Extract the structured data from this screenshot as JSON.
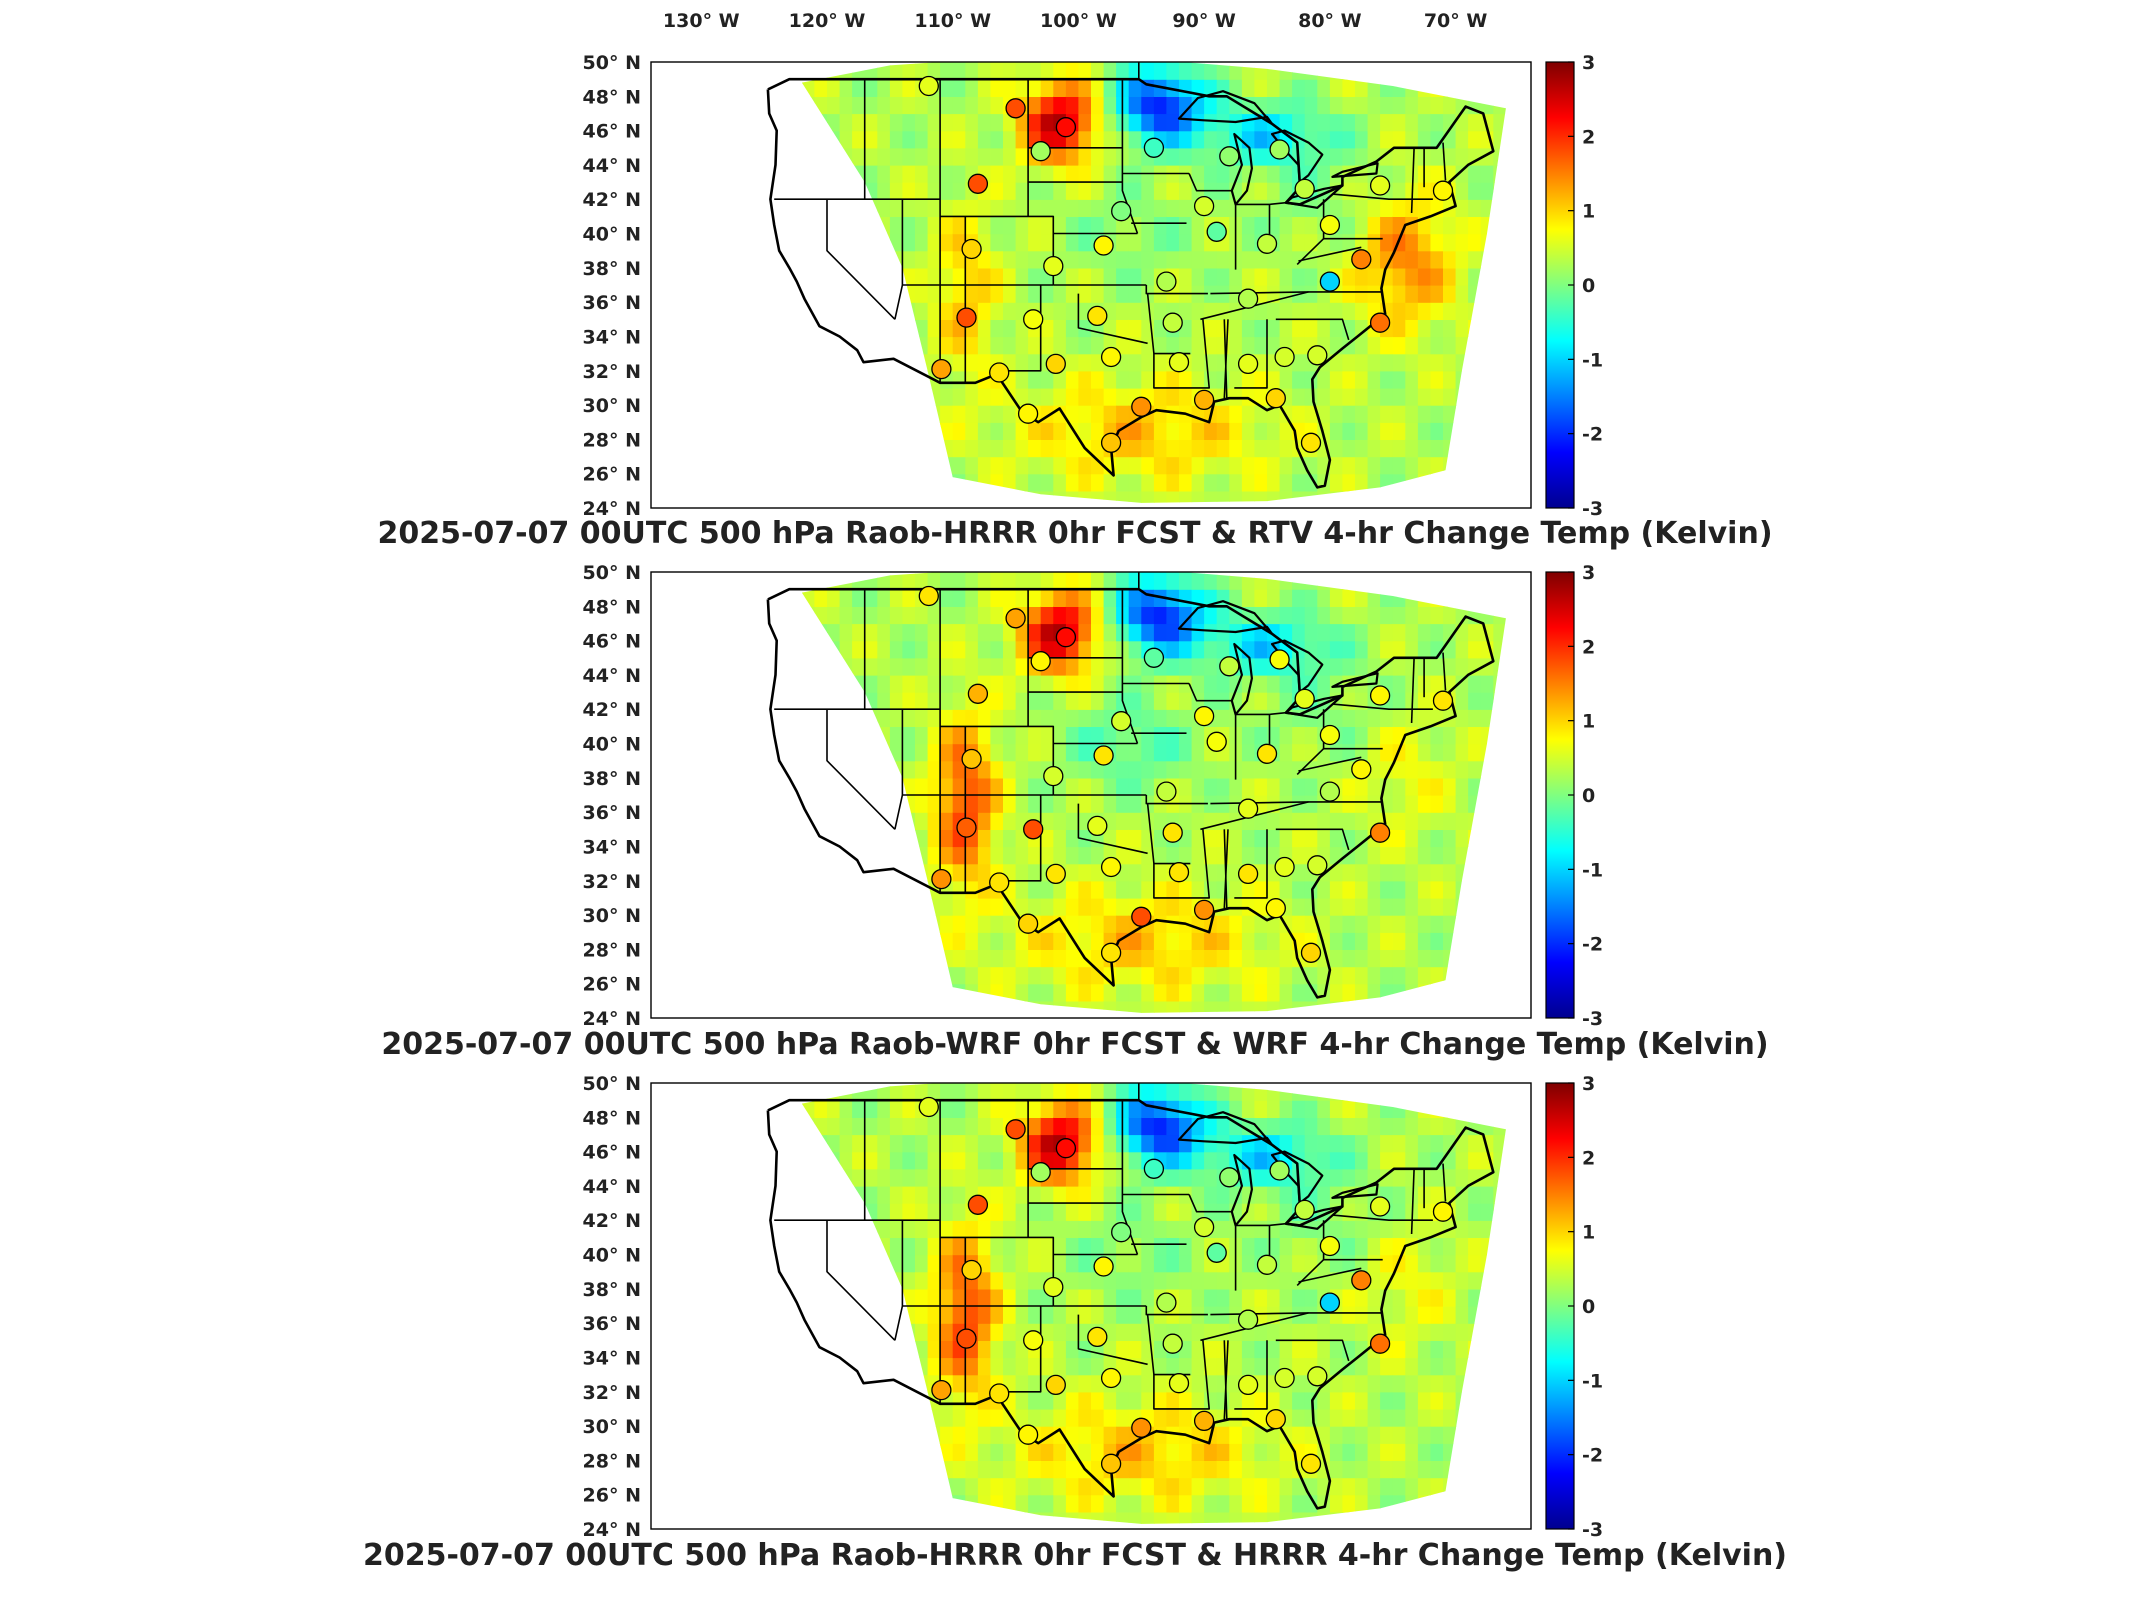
{
  "lon_labels": [
    "130° W",
    "120° W",
    "110° W",
    "100° W",
    "90° W",
    "80° W",
    "70° W"
  ],
  "lat_labels": [
    "50° N",
    "48° N",
    "46° N",
    "44° N",
    "42° N",
    "40° N",
    "38° N",
    "36° N",
    "34° N",
    "32° N",
    "30° N",
    "28° N",
    "26° N",
    "24° N"
  ],
  "colorbar": {
    "ticks": [
      "3",
      "2",
      "1",
      "0",
      "-1",
      "-2",
      "-3"
    ],
    "colors": [
      "#7f0000",
      "#ff0000",
      "#ff8000",
      "#ffff00",
      "#80ff80",
      "#00ffff",
      "#0080ff",
      "#0000ff",
      "#00008f"
    ]
  },
  "panels": [
    {
      "title": "2025-07-07 00UTC 500 hPa Raob-HRRR 0hr FCST & RTV 4-hr Change Temp (Kelvin)"
    },
    {
      "title": "2025-07-07 00UTC 500 hPa Raob-WRF 0hr FCST & WRF 4-hr Change Temp (Kelvin)"
    },
    {
      "title": "2025-07-07 00UTC 500 hPa Raob-HRRR 0hr FCST & HRRR 4-hr Change Temp (Kelvin)"
    }
  ],
  "chart_data": [
    {
      "type": "heatmap",
      "title": "2025-07-07 00UTC 500 hPa Raob-HRRR 0hr FCST & RTV 4-hr Change Temp (Kelvin)",
      "xlim": [
        -134,
        -64
      ],
      "ylim": [
        24,
        50
      ],
      "clim": [
        -3,
        3
      ],
      "stations": [
        {
          "lon": -111.9,
          "lat": 48.6,
          "v": 0.6
        },
        {
          "lon": -105.0,
          "lat": 47.3,
          "v": 1.8
        },
        {
          "lon": -101.0,
          "lat": 46.2,
          "v": 2.2
        },
        {
          "lon": -108.0,
          "lat": 42.9,
          "v": 1.8
        },
        {
          "lon": -103.0,
          "lat": 44.8,
          "v": 0.2
        },
        {
          "lon": -94.0,
          "lat": 45.0,
          "v": -0.4
        },
        {
          "lon": -88.0,
          "lat": 44.5,
          "v": 0.1
        },
        {
          "lon": -84.0,
          "lat": 44.9,
          "v": 0.2
        },
        {
          "lon": -96.6,
          "lat": 41.3,
          "v": 0.0
        },
        {
          "lon": -90.0,
          "lat": 41.6,
          "v": 0.5
        },
        {
          "lon": -82.0,
          "lat": 42.6,
          "v": 0.4
        },
        {
          "lon": -76.0,
          "lat": 42.8,
          "v": 0.6
        },
        {
          "lon": -71.0,
          "lat": 42.5,
          "v": 0.8
        },
        {
          "lon": -108.5,
          "lat": 39.1,
          "v": 1.0
        },
        {
          "lon": -102.0,
          "lat": 38.1,
          "v": 0.6
        },
        {
          "lon": -98.0,
          "lat": 39.3,
          "v": 0.8
        },
        {
          "lon": -93.0,
          "lat": 37.2,
          "v": 0.3
        },
        {
          "lon": -89.0,
          "lat": 40.1,
          "v": -0.2
        },
        {
          "lon": -85.0,
          "lat": 39.4,
          "v": 0.4
        },
        {
          "lon": -80.0,
          "lat": 40.5,
          "v": 0.7
        },
        {
          "lon": -77.5,
          "lat": 38.5,
          "v": 1.5
        },
        {
          "lon": -80.0,
          "lat": 37.2,
          "v": -1.0
        },
        {
          "lon": -108.9,
          "lat": 35.1,
          "v": 1.8
        },
        {
          "lon": -103.6,
          "lat": 35.0,
          "v": 0.7
        },
        {
          "lon": -98.5,
          "lat": 35.2,
          "v": 0.9
        },
        {
          "lon": -92.5,
          "lat": 34.8,
          "v": 0.4
        },
        {
          "lon": -86.5,
          "lat": 36.2,
          "v": 0.3
        },
        {
          "lon": -76.0,
          "lat": 34.8,
          "v": 1.6
        },
        {
          "lon": -110.9,
          "lat": 32.1,
          "v": 1.3
        },
        {
          "lon": -106.3,
          "lat": 31.9,
          "v": 0.9
        },
        {
          "lon": -101.8,
          "lat": 32.4,
          "v": 1.0
        },
        {
          "lon": -97.4,
          "lat": 32.8,
          "v": 0.8
        },
        {
          "lon": -92.0,
          "lat": 32.5,
          "v": 0.6
        },
        {
          "lon": -86.5,
          "lat": 32.4,
          "v": 0.6
        },
        {
          "lon": -83.6,
          "lat": 32.8,
          "v": 0.5
        },
        {
          "lon": -81.0,
          "lat": 32.9,
          "v": 0.5
        },
        {
          "lon": -104.0,
          "lat": 29.5,
          "v": 0.8
        },
        {
          "lon": -97.4,
          "lat": 27.8,
          "v": 1.1
        },
        {
          "lon": -95.0,
          "lat": 29.9,
          "v": 1.4
        },
        {
          "lon": -90.0,
          "lat": 30.3,
          "v": 1.2
        },
        {
          "lon": -84.3,
          "lat": 30.4,
          "v": 1.0
        },
        {
          "lon": -81.5,
          "lat": 27.8,
          "v": 0.9
        }
      ]
    },
    {
      "type": "heatmap",
      "title": "2025-07-07 00UTC 500 hPa Raob-WRF 0hr FCST & WRF 4-hr Change Temp (Kelvin)",
      "xlim": [
        -134,
        -64
      ],
      "ylim": [
        24,
        50
      ],
      "clim": [
        -3,
        3
      ],
      "stations": [
        {
          "lon": -111.9,
          "lat": 48.6,
          "v": 0.9
        },
        {
          "lon": -105.0,
          "lat": 47.3,
          "v": 1.3
        },
        {
          "lon": -101.0,
          "lat": 46.2,
          "v": 2.2
        },
        {
          "lon": -108.0,
          "lat": 42.9,
          "v": 1.2
        },
        {
          "lon": -103.0,
          "lat": 44.8,
          "v": 0.8
        },
        {
          "lon": -94.0,
          "lat": 45.0,
          "v": -0.2
        },
        {
          "lon": -88.0,
          "lat": 44.5,
          "v": 0.4
        },
        {
          "lon": -84.0,
          "lat": 44.9,
          "v": 0.7
        },
        {
          "lon": -96.6,
          "lat": 41.3,
          "v": 0.5
        },
        {
          "lon": -90.0,
          "lat": 41.6,
          "v": 0.8
        },
        {
          "lon": -82.0,
          "lat": 42.6,
          "v": 0.6
        },
        {
          "lon": -76.0,
          "lat": 42.8,
          "v": 0.8
        },
        {
          "lon": -71.0,
          "lat": 42.5,
          "v": 0.9
        },
        {
          "lon": -108.5,
          "lat": 39.1,
          "v": 1.1
        },
        {
          "lon": -102.0,
          "lat": 38.1,
          "v": 0.5
        },
        {
          "lon": -98.0,
          "lat": 39.3,
          "v": 0.9
        },
        {
          "lon": -93.0,
          "lat": 37.2,
          "v": 0.4
        },
        {
          "lon": -89.0,
          "lat": 40.1,
          "v": 0.7
        },
        {
          "lon": -85.0,
          "lat": 39.4,
          "v": 0.9
        },
        {
          "lon": -80.0,
          "lat": 40.5,
          "v": 0.7
        },
        {
          "lon": -77.5,
          "lat": 38.5,
          "v": 0.8
        },
        {
          "lon": -80.0,
          "lat": 37.2,
          "v": 0.3
        },
        {
          "lon": -108.9,
          "lat": 35.1,
          "v": 1.7
        },
        {
          "lon": -103.6,
          "lat": 35.0,
          "v": 1.8
        },
        {
          "lon": -98.5,
          "lat": 35.2,
          "v": 0.6
        },
        {
          "lon": -92.5,
          "lat": 34.8,
          "v": 0.9
        },
        {
          "lon": -86.5,
          "lat": 36.2,
          "v": 0.6
        },
        {
          "lon": -76.0,
          "lat": 34.8,
          "v": 1.5
        },
        {
          "lon": -110.9,
          "lat": 32.1,
          "v": 1.4
        },
        {
          "lon": -106.3,
          "lat": 31.9,
          "v": 0.9
        },
        {
          "lon": -101.8,
          "lat": 32.4,
          "v": 0.9
        },
        {
          "lon": -97.4,
          "lat": 32.8,
          "v": 0.8
        },
        {
          "lon": -92.0,
          "lat": 32.5,
          "v": 0.9
        },
        {
          "lon": -86.5,
          "lat": 32.4,
          "v": 0.9
        },
        {
          "lon": -83.6,
          "lat": 32.8,
          "v": 0.6
        },
        {
          "lon": -81.0,
          "lat": 32.9,
          "v": 0.5
        },
        {
          "lon": -104.0,
          "lat": 29.5,
          "v": 1.0
        },
        {
          "lon": -97.4,
          "lat": 27.8,
          "v": 0.9
        },
        {
          "lon": -95.0,
          "lat": 29.9,
          "v": 1.8
        },
        {
          "lon": -90.0,
          "lat": 30.3,
          "v": 1.4
        },
        {
          "lon": -84.3,
          "lat": 30.4,
          "v": 0.8
        },
        {
          "lon": -81.5,
          "lat": 27.8,
          "v": 1.0
        }
      ]
    },
    {
      "type": "heatmap",
      "title": "2025-07-07 00UTC 500 hPa Raob-HRRR 0hr FCST & HRRR 4-hr Change Temp (Kelvin)",
      "xlim": [
        -134,
        -64
      ],
      "ylim": [
        24,
        50
      ],
      "clim": [
        -3,
        3
      ],
      "stations": [
        {
          "lon": -111.9,
          "lat": 48.6,
          "v": 0.6
        },
        {
          "lon": -105.0,
          "lat": 47.3,
          "v": 1.8
        },
        {
          "lon": -101.0,
          "lat": 46.2,
          "v": 2.2
        },
        {
          "lon": -108.0,
          "lat": 42.9,
          "v": 1.8
        },
        {
          "lon": -103.0,
          "lat": 44.8,
          "v": 0.2
        },
        {
          "lon": -94.0,
          "lat": 45.0,
          "v": -0.4
        },
        {
          "lon": -88.0,
          "lat": 44.5,
          "v": 0.1
        },
        {
          "lon": -84.0,
          "lat": 44.9,
          "v": 0.2
        },
        {
          "lon": -96.6,
          "lat": 41.3,
          "v": 0.0
        },
        {
          "lon": -90.0,
          "lat": 41.6,
          "v": 0.5
        },
        {
          "lon": -82.0,
          "lat": 42.6,
          "v": 0.4
        },
        {
          "lon": -76.0,
          "lat": 42.8,
          "v": 0.6
        },
        {
          "lon": -71.0,
          "lat": 42.5,
          "v": 0.8
        },
        {
          "lon": -108.5,
          "lat": 39.1,
          "v": 1.0
        },
        {
          "lon": -102.0,
          "lat": 38.1,
          "v": 0.6
        },
        {
          "lon": -98.0,
          "lat": 39.3,
          "v": 0.8
        },
        {
          "lon": -93.0,
          "lat": 37.2,
          "v": 0.3
        },
        {
          "lon": -89.0,
          "lat": 40.1,
          "v": -0.2
        },
        {
          "lon": -85.0,
          "lat": 39.4,
          "v": 0.4
        },
        {
          "lon": -80.0,
          "lat": 40.5,
          "v": 0.7
        },
        {
          "lon": -77.5,
          "lat": 38.5,
          "v": 1.5
        },
        {
          "lon": -80.0,
          "lat": 37.2,
          "v": -1.0
        },
        {
          "lon": -108.9,
          "lat": 35.1,
          "v": 1.8
        },
        {
          "lon": -103.6,
          "lat": 35.0,
          "v": 0.7
        },
        {
          "lon": -98.5,
          "lat": 35.2,
          "v": 0.9
        },
        {
          "lon": -92.5,
          "lat": 34.8,
          "v": 0.4
        },
        {
          "lon": -86.5,
          "lat": 36.2,
          "v": 0.3
        },
        {
          "lon": -76.0,
          "lat": 34.8,
          "v": 1.6
        },
        {
          "lon": -110.9,
          "lat": 32.1,
          "v": 1.3
        },
        {
          "lon": -106.3,
          "lat": 31.9,
          "v": 0.9
        },
        {
          "lon": -101.8,
          "lat": 32.4,
          "v": 1.0
        },
        {
          "lon": -97.4,
          "lat": 32.8,
          "v": 0.8
        },
        {
          "lon": -92.0,
          "lat": 32.5,
          "v": 0.6
        },
        {
          "lon": -86.5,
          "lat": 32.4,
          "v": 0.6
        },
        {
          "lon": -83.6,
          "lat": 32.8,
          "v": 0.5
        },
        {
          "lon": -81.0,
          "lat": 32.9,
          "v": 0.5
        },
        {
          "lon": -104.0,
          "lat": 29.5,
          "v": 0.8
        },
        {
          "lon": -97.4,
          "lat": 27.8,
          "v": 1.1
        },
        {
          "lon": -95.0,
          "lat": 29.9,
          "v": 1.4
        },
        {
          "lon": -90.0,
          "lat": 30.3,
          "v": 1.2
        },
        {
          "lon": -84.3,
          "lat": 30.4,
          "v": 1.0
        },
        {
          "lon": -81.5,
          "lat": 27.8,
          "v": 0.9
        }
      ]
    }
  ]
}
